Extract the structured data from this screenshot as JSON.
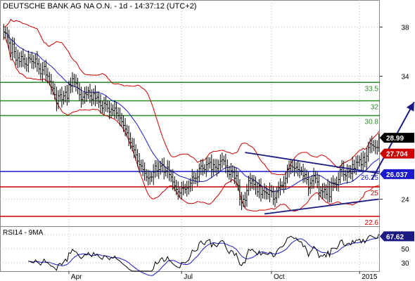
{
  "header": {
    "title": "DEUTSCHE BANK AG NA O.N. - 1d - 14:37:12 (UTC+2)",
    "indicator_title": "RSI14 - 9MA"
  },
  "chart_data": [
    {
      "type": "candlestick",
      "title": "DEUTSCHE BANK AG NA O.N. - 1d - 14:37:12 (UTC+2)",
      "y_ticks": [
        "38",
        "34",
        "24"
      ],
      "ylim": [
        21.8,
        40.2
      ],
      "y_scale": "linear",
      "x_ticks": [
        "Apr",
        "Jul",
        "Oct",
        "2015"
      ],
      "grid": true,
      "colors": {
        "price": "#000000",
        "bands": "#cc0000",
        "ma": "#1a1acc",
        "support": "#2a8a2a",
        "level_blue": "#1a1acc",
        "level_red": "#cc0000",
        "trend": "#1a1a80"
      },
      "close_series": [
        37.6,
        37.5,
        37.2,
        36.7,
        35.9,
        36.6,
        36.0,
        35.3,
        35.5,
        35.2,
        35.6,
        35.4,
        35.0,
        34.9,
        35.5,
        35.4,
        35.2,
        35.1,
        35.4,
        35.0,
        34.6,
        34.2,
        34.5,
        34.8,
        34.1,
        34.0,
        33.6,
        33.1,
        33.0,
        32.5,
        31.8,
        32.4,
        32.5,
        32.1,
        32.4,
        32.7,
        32.2,
        33.3,
        33.2,
        33.8,
        33.5,
        33.4,
        33.0,
        32.5,
        32.1,
        32.3,
        32.6,
        32.5,
        32.8,
        32.4,
        32.1,
        32.6,
        32.2,
        32.3,
        31.9,
        31.6,
        31.4,
        31.8,
        31.7,
        31.4,
        31.1,
        31.3,
        31.2,
        31.4,
        31.0,
        30.8,
        30.6,
        30.3,
        30.0,
        29.7,
        29.4,
        28.9,
        28.6,
        28.3,
        28.0,
        27.6,
        27.1,
        26.8,
        26.7,
        26.4,
        26.1,
        25.8,
        25.7,
        25.8,
        25.8,
        26.2,
        26.7,
        26.3,
        26.4,
        26.7,
        26.8,
        26.2,
        26.3,
        26.6,
        26.0,
        25.8,
        25.4,
        25.1,
        24.8,
        24.6,
        24.5,
        24.9,
        24.9,
        24.8,
        24.9,
        25.0,
        25.3,
        25.8,
        25.7,
        25.7,
        25.8,
        26.5,
        26.7,
        26.5,
        26.4,
        26.8,
        26.9,
        27.0,
        26.4,
        26.8,
        26.6,
        26.5,
        26.8,
        27.1,
        27.2,
        27.1,
        26.7,
        26.3,
        26.0,
        26.3,
        26.2,
        25.7,
        25.9,
        25.1,
        24.0,
        23.7,
        24.0,
        23.9,
        24.7,
        25.5,
        25.3,
        25.5,
        25.2,
        25.0,
        24.6,
        25.1,
        24.4,
        24.7,
        24.6,
        24.5,
        24.4,
        24.7,
        24.6,
        24.0,
        24.1,
        24.6,
        24.9,
        25.1,
        25.1,
        25.3,
        25.7,
        26.4,
        26.5,
        26.7,
        26.6,
        26.5,
        26.6,
        26.4,
        26.3,
        26.3,
        25.9,
        26.0,
        25.6,
        24.9,
        25.3,
        25.5,
        25.9,
        25.7,
        25.4,
        24.5,
        24.7,
        24.6,
        24.8,
        24.4,
        25.0,
        24.2,
        25.3,
        25.3,
        25.3,
        25.2,
        25.6,
        26.4,
        26.6,
        26.0,
        25.9,
        26.2,
        26.3,
        26.1,
        26.8,
        26.5,
        27.0,
        27.0,
        27.2,
        26.8,
        27.4,
        27.0,
        27.5,
        28.2,
        28.5,
        28.4,
        28.3,
        28.2,
        28.2,
        29.0
      ],
      "levels": [
        {
          "value": 33.5,
          "label": "33.5",
          "color": "green"
        },
        {
          "value": 32,
          "label": "32",
          "color": "green"
        },
        {
          "value": 30.8,
          "label": "30.8",
          "color": "green"
        },
        {
          "value": 26.25,
          "label": "26.25",
          "color": "blue"
        },
        {
          "value": 25,
          "label": "25",
          "color": "red"
        },
        {
          "value": 22.6,
          "label": "22.6",
          "color": "red"
        }
      ],
      "price_tags": [
        {
          "value": 28.99,
          "label": "28.99",
          "color": "#000000",
          "text_color": "#ffffff"
        },
        {
          "value": 27.704,
          "label": "27.704",
          "color": "#cc0000",
          "text_color": "#ffffff"
        },
        {
          "value": 26.037,
          "label": "26.037",
          "color": "#1a1acc",
          "text_color": "#ffffff"
        }
      ],
      "trendlines": [
        {
          "from": [
            137,
            27.8
          ],
          "to": [
            213,
            26.1
          ]
        },
        {
          "from": [
            148,
            22.8
          ],
          "to": [
            213,
            24.0
          ]
        }
      ],
      "projection_arrow": {
        "from": [
          209,
          25.6
        ],
        "to": [
          233,
          31.9
        ]
      },
      "series": [
        {
          "name": "price (HLC bars)"
        },
        {
          "name": "bollinger upper"
        },
        {
          "name": "bollinger lower"
        },
        {
          "name": "moving average"
        }
      ]
    },
    {
      "type": "line",
      "title": "RSI14 - 9MA",
      "y_ticks": [
        "70",
        "50",
        "30"
      ],
      "ylim": [
        18,
        82
      ],
      "x_ticks": [
        "Apr",
        "Jul",
        "Oct",
        "2015"
      ],
      "price_tags": [
        {
          "value": 67.62,
          "label": "67.62",
          "color": "#1a1a80",
          "text_color": "#ffffff"
        }
      ],
      "series": [
        {
          "name": "RSI14",
          "color": "#000000"
        },
        {
          "name": "9MA",
          "color": "#1a1acc"
        }
      ]
    }
  ]
}
